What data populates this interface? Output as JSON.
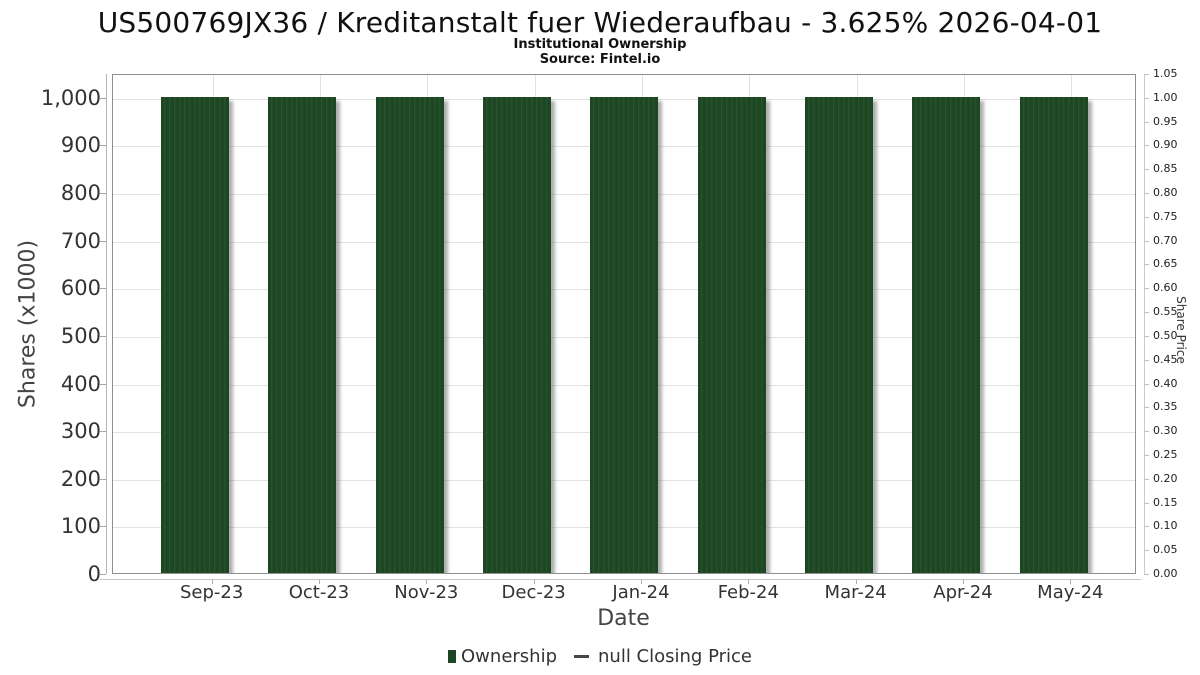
{
  "header": {
    "title": "US500769JX36 / Kreditanstalt fuer Wiederaufbau - 3.625% 2026-04-01",
    "subtitle": "Institutional Ownership",
    "source": "Source: Fintel.io"
  },
  "chart_data": {
    "type": "bar",
    "title": "US500769JX36 / Kreditanstalt fuer Wiederaufbau - 3.625% 2026-04-01",
    "subtitle": "Institutional Ownership",
    "source": "Source: Fintel.io",
    "categories": [
      "Sep-23",
      "Oct-23",
      "Nov-23",
      "Dec-23",
      "Jan-24",
      "Feb-24",
      "Mar-24",
      "Apr-24",
      "May-24"
    ],
    "series": [
      {
        "name": "Ownership",
        "values": [
          1000,
          1000,
          1000,
          1000,
          1000,
          1000,
          1000,
          1000,
          1000
        ]
      }
    ],
    "xlabel": "Date",
    "ylabel_left": "Shares (x1000)",
    "ylabel_right": "Share Price",
    "ylim_left": [
      0,
      1050
    ],
    "ylim_right": [
      0,
      1.05
    ],
    "yticks_left": {
      "values": [
        0,
        100,
        200,
        300,
        400,
        500,
        600,
        700,
        800,
        900,
        1000
      ],
      "labels": [
        "0",
        "100",
        "200",
        "300",
        "400",
        "500",
        "600",
        "700",
        "800",
        "900",
        "1,000"
      ]
    },
    "yticks_right": {
      "values": [
        0,
        0.05,
        0.1,
        0.15,
        0.2,
        0.25,
        0.3,
        0.35,
        0.4,
        0.45,
        0.5,
        0.55,
        0.6,
        0.65,
        0.7,
        0.75,
        0.8,
        0.85,
        0.9,
        0.95,
        1.0,
        1.05
      ],
      "labels": [
        "0.00",
        "0.05",
        "0.10",
        "0.15",
        "0.20",
        "0.25",
        "0.30",
        "0.35",
        "0.40",
        "0.45",
        "0.50",
        "0.55",
        "0.60",
        "0.65",
        "0.70",
        "0.75",
        "0.80",
        "0.85",
        "0.90",
        "0.95",
        "1.00",
        "1.05"
      ]
    },
    "grid": true,
    "legend_position": "bottom",
    "bar_color": "#1d4723",
    "bar_stripe_light": "#2f5c36",
    "bar_stripe_dark": "#153619"
  },
  "legend": {
    "ownership_label": "Ownership",
    "closing_price_label": "null Closing Price",
    "ownership_color": "#1d4723",
    "closing_price_line_color": "#474747"
  }
}
